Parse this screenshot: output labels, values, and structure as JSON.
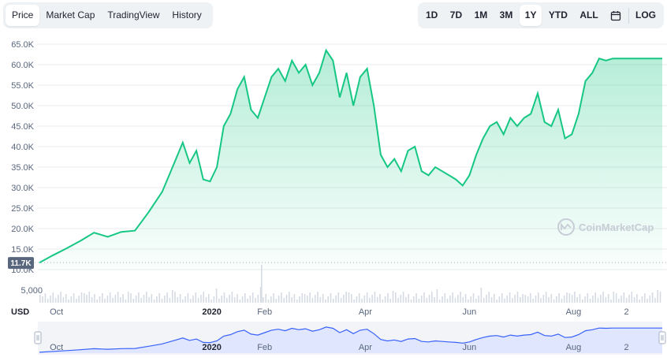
{
  "tabs": [
    {
      "label": "Price",
      "active": true
    },
    {
      "label": "Market Cap",
      "active": false
    },
    {
      "label": "TradingView",
      "active": false
    },
    {
      "label": "History",
      "active": false
    }
  ],
  "ranges": [
    {
      "label": "1D",
      "active": false
    },
    {
      "label": "7D",
      "active": false
    },
    {
      "label": "1M",
      "active": false
    },
    {
      "label": "3M",
      "active": false
    },
    {
      "label": "1Y",
      "active": true
    },
    {
      "label": "YTD",
      "active": false
    },
    {
      "label": "ALL",
      "active": false
    }
  ],
  "log_label": "LOG",
  "calendar_icon": "calendar-icon",
  "watermark": "CoinMarketCap",
  "currency_label": "USD",
  "colors": {
    "line": "#16c784",
    "grid": "#e8ebef",
    "volume": "#d6dbe3",
    "nav_line": "#3861fb",
    "nav_fill": "#dfe6fd"
  },
  "chart_data": {
    "type": "area",
    "ylim": [
      10000,
      65000
    ],
    "y_ticks": [
      10000,
      15000,
      20000,
      25000,
      30000,
      35000,
      40000,
      45000,
      50000,
      55000,
      60000,
      65000
    ],
    "y_tick_labels": [
      "10.0K",
      "15.0K",
      "20.0K",
      "25.0K",
      "30.0K",
      "35.0K",
      "40.0K",
      "45.0K",
      "50.0K",
      "55.0K",
      "60.0K",
      "65.0K"
    ],
    "volume_tick_label": "5,000",
    "start_label": "11.7K",
    "start_value": 11700,
    "x_ticks": [
      {
        "label": "Oct",
        "bold": false
      },
      {
        "label": "2020",
        "bold": true
      },
      {
        "label": "Feb",
        "bold": false
      },
      {
        "label": "Apr",
        "bold": false
      },
      {
        "label": "Jun",
        "bold": false
      },
      {
        "label": "Aug",
        "bold": false
      },
      {
        "label": "2",
        "bold": false
      }
    ],
    "x_tick_days": [
      10,
      101,
      132,
      191,
      252,
      313,
      344
    ],
    "total_days": 365,
    "series": [
      {
        "x_days": [
          0,
          8,
          16,
          24,
          32,
          40,
          48,
          56,
          64,
          72,
          80,
          84,
          88,
          92,
          96,
          100,
          104,
          108,
          112,
          116,
          120,
          124,
          128,
          132,
          136,
          140,
          144,
          148,
          152,
          156,
          160,
          164,
          168,
          172,
          176,
          180,
          184,
          188,
          192,
          196,
          200,
          204,
          208,
          212,
          216,
          220,
          224,
          228,
          232,
          236,
          240,
          244,
          248,
          252,
          256,
          260,
          264,
          268,
          272,
          276,
          280,
          284,
          288,
          292,
          296,
          300,
          304,
          308,
          312,
          316,
          320,
          324,
          328,
          332,
          336,
          340,
          344,
          348,
          352,
          356,
          360,
          365
        ],
        "values": [
          11700,
          13500,
          15200,
          17000,
          19000,
          18000,
          19200,
          19500,
          24000,
          29000,
          37000,
          41000,
          36000,
          39000,
          32000,
          31500,
          35000,
          45000,
          48000,
          54000,
          57000,
          49000,
          47000,
          52000,
          57000,
          59000,
          56000,
          61000,
          58000,
          60000,
          55000,
          58000,
          63500,
          61000,
          52000,
          58000,
          50000,
          57000,
          59000,
          50000,
          38000,
          35000,
          37000,
          34000,
          39000,
          40000,
          34000,
          33000,
          35000,
          34000,
          33000,
          32000,
          30500,
          33000,
          38000,
          42000,
          45000,
          46000,
          43000,
          47000,
          45000,
          47000,
          48000,
          53000,
          46000,
          45000,
          49000,
          42000,
          43000,
          48000,
          56000,
          58000,
          61500,
          61000,
          61500,
          61500,
          61500,
          61500,
          61500,
          61500,
          61500,
          61500
        ]
      }
    ]
  }
}
